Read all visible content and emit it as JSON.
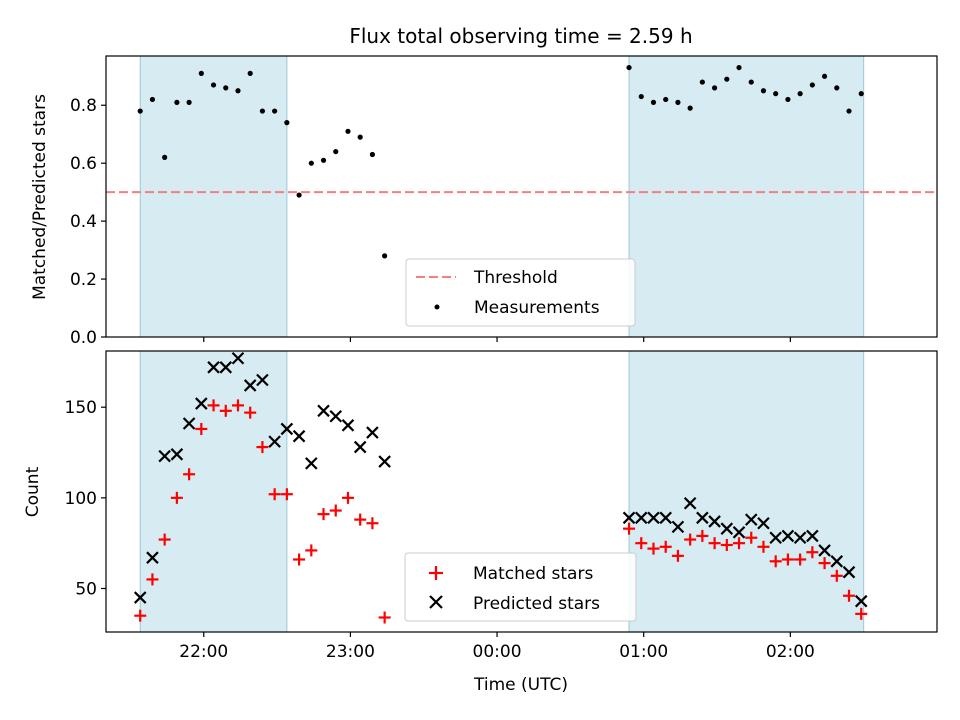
{
  "chart_data": [
    {
      "type": "scatter",
      "title": "Flux total observing time = 2.59 h",
      "xlabel": "",
      "ylabel": "Matched/Predicted stars",
      "ylim": [
        0,
        0.97
      ],
      "yticks": [
        "0.0",
        "0.2",
        "0.4",
        "0.6",
        "0.8"
      ],
      "grid": false,
      "legend_position": "lower-center",
      "threshold": {
        "name": "Threshold",
        "value": 0.5,
        "color": "#f47f7f",
        "style": "dashed"
      },
      "shaded_intervals": [
        [
          "21:34",
          "22:34"
        ],
        [
          "00:54",
          "02:30"
        ]
      ],
      "series": [
        {
          "name": "Measurements",
          "marker": "dot",
          "color": "#000000",
          "x": [
            "21:34",
            "21:39",
            "21:44",
            "21:49",
            "21:54",
            "21:59",
            "22:04",
            "22:09",
            "22:14",
            "22:19",
            "22:24",
            "22:29",
            "22:34",
            "22:39",
            "22:44",
            "22:49",
            "22:54",
            "22:59",
            "23:04",
            "23:09",
            "23:14",
            "00:54",
            "00:59",
            "01:04",
            "01:09",
            "01:14",
            "01:19",
            "01:24",
            "01:29",
            "01:34",
            "01:39",
            "01:44",
            "01:49",
            "01:54",
            "01:59",
            "02:04",
            "02:09",
            "02:14",
            "02:19",
            "02:24",
            "02:29"
          ],
          "y": [
            0.78,
            0.82,
            0.62,
            0.81,
            0.81,
            0.91,
            0.87,
            0.86,
            0.85,
            0.91,
            0.78,
            0.78,
            0.74,
            0.49,
            0.6,
            0.61,
            0.64,
            0.71,
            0.69,
            0.63,
            0.28,
            0.93,
            0.83,
            0.81,
            0.82,
            0.81,
            0.79,
            0.88,
            0.86,
            0.89,
            0.93,
            0.88,
            0.85,
            0.84,
            0.82,
            0.84,
            0.87,
            0.9,
            0.86,
            0.78,
            0.84
          ]
        }
      ]
    },
    {
      "type": "scatter",
      "xlabel": "Time (UTC)",
      "ylabel": "Count",
      "ylim": [
        26,
        181
      ],
      "yticks": [
        "50",
        "100",
        "150"
      ],
      "xticks": [
        "22:00",
        "23:00",
        "00:00",
        "01:00",
        "02:00"
      ],
      "xlim": [
        "21:20",
        "03:00"
      ],
      "grid": false,
      "legend_position": "lower-center",
      "shaded_intervals": [
        [
          "21:34",
          "22:34"
        ],
        [
          "00:54",
          "02:30"
        ]
      ],
      "series": [
        {
          "name": "Matched stars",
          "marker": "plus",
          "color": "#ff0000",
          "x": [
            "21:34",
            "21:39",
            "21:44",
            "21:49",
            "21:54",
            "21:59",
            "22:04",
            "22:09",
            "22:14",
            "22:19",
            "22:24",
            "22:29",
            "22:34",
            "22:39",
            "22:44",
            "22:49",
            "22:54",
            "22:59",
            "23:04",
            "23:09",
            "23:14",
            "00:54",
            "00:59",
            "01:04",
            "01:09",
            "01:14",
            "01:19",
            "01:24",
            "01:29",
            "01:34",
            "01:39",
            "01:44",
            "01:49",
            "01:54",
            "01:59",
            "02:04",
            "02:09",
            "02:14",
            "02:19",
            "02:24",
            "02:29"
          ],
          "y": [
            35,
            55,
            77,
            100,
            113,
            138,
            151,
            148,
            151,
            147,
            128,
            102,
            102,
            66,
            71,
            91,
            93,
            100,
            88,
            86,
            34,
            83,
            75,
            72,
            73,
            68,
            77,
            79,
            75,
            74,
            75,
            78,
            73,
            65,
            66,
            66,
            70,
            64,
            57,
            46,
            36
          ]
        },
        {
          "name": "Predicted stars",
          "marker": "x",
          "color": "#000000",
          "x": [
            "21:34",
            "21:39",
            "21:44",
            "21:49",
            "21:54",
            "21:59",
            "22:04",
            "22:09",
            "22:14",
            "22:19",
            "22:24",
            "22:29",
            "22:34",
            "22:39",
            "22:44",
            "22:49",
            "22:54",
            "22:59",
            "23:04",
            "23:09",
            "23:14",
            "00:54",
            "00:59",
            "01:04",
            "01:09",
            "01:14",
            "01:19",
            "01:24",
            "01:29",
            "01:34",
            "01:39",
            "01:44",
            "01:49",
            "01:54",
            "01:59",
            "02:04",
            "02:09",
            "02:14",
            "02:19",
            "02:24",
            "02:29"
          ],
          "y": [
            45,
            67,
            123,
            124,
            141,
            152,
            172,
            172,
            177,
            162,
            165,
            131,
            138,
            134,
            119,
            148,
            145,
            140,
            128,
            136,
            120,
            89,
            89,
            89,
            89,
            84,
            97,
            89,
            87,
            83,
            81,
            88,
            86,
            78,
            79,
            78,
            79,
            71,
            65,
            59,
            43
          ]
        }
      ]
    }
  ]
}
